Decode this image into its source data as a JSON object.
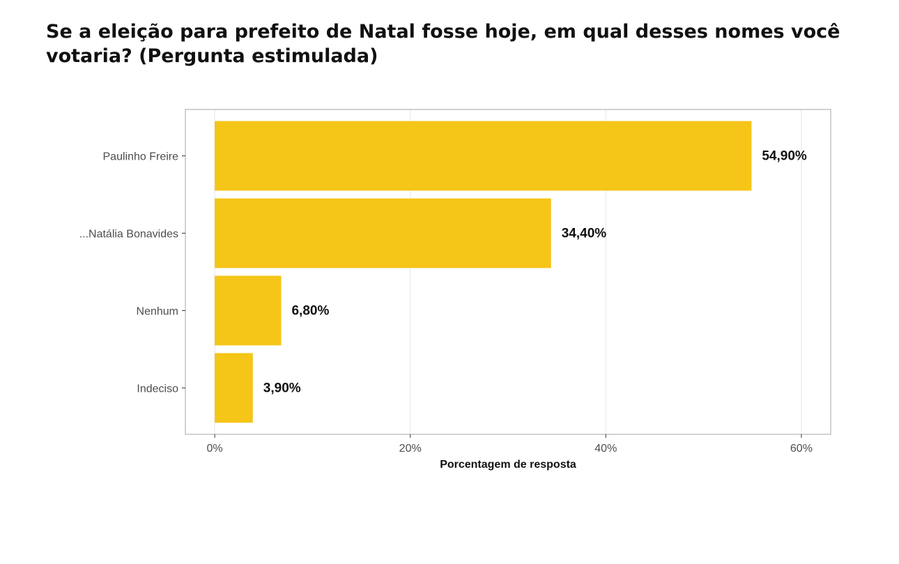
{
  "title": "Se a eleição para prefeito de Natal fosse hoje, em qual desses nomes você votaria? (Pergunta estimulada)",
  "chart_data": {
    "type": "bar",
    "orientation": "horizontal",
    "title": "Se a eleição para prefeito de Natal fosse hoje, em qual desses nomes você votaria? (Pergunta estimulada)",
    "xlabel": "Porcentagem de resposta",
    "ylabel": "",
    "categories": [
      "Paulinho Freire",
      "...Natália Bonavides",
      "Nenhum",
      "Indeciso"
    ],
    "values": [
      54.9,
      34.4,
      6.8,
      3.9
    ],
    "value_labels": [
      "54,90%",
      "34,40%",
      "6,80%",
      "3,90%"
    ],
    "xlim": [
      -3,
      63
    ],
    "xticks": [
      0,
      20,
      40,
      60
    ],
    "xtick_labels": [
      "0%",
      "20%",
      "40%",
      "60%"
    ],
    "grid": true,
    "legend": "none",
    "bar_color": "#F5C518",
    "gridline_color": "#e6e6e6",
    "panel_border_color": "#b3b3b3"
  }
}
